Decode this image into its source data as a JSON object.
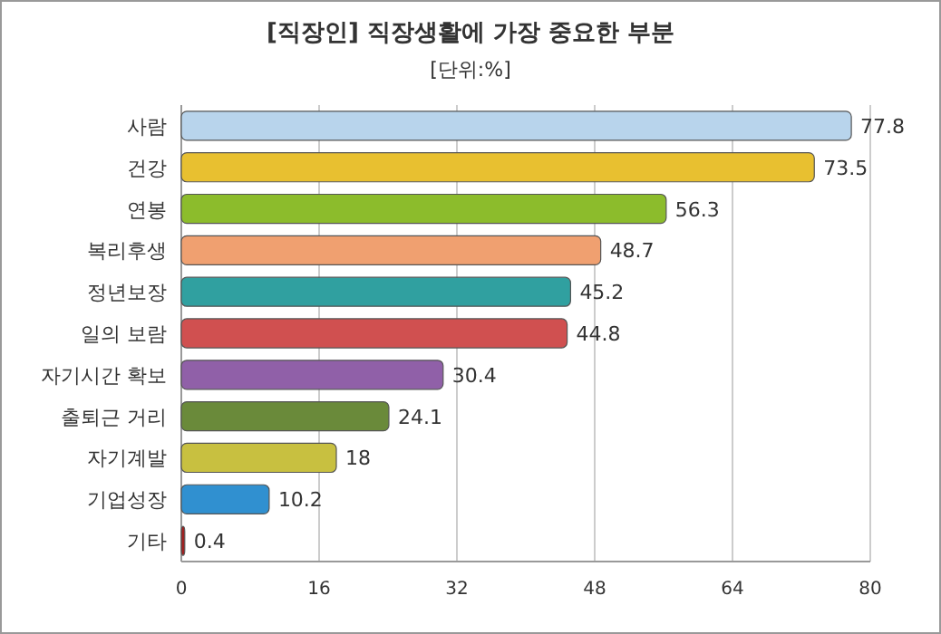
{
  "chart_data": {
    "type": "bar",
    "orientation": "horizontal",
    "title": "[직장인] 직장생활에 가장 중요한 부분",
    "subtitle": "[단위:%]",
    "categories": [
      "사람",
      "건강",
      "연봉",
      "복리후생",
      "정년보장",
      "일의 보람",
      "자기시간 확보",
      "출퇴근 거리",
      "자기계발",
      "기업성장",
      "기타"
    ],
    "values": [
      77.8,
      73.5,
      56.3,
      48.7,
      45.2,
      44.8,
      30.4,
      24.1,
      18,
      10.2,
      0.4
    ],
    "colors": [
      "#b8d4ec",
      "#e8c030",
      "#8cbc2c",
      "#f0a070",
      "#30a0a0",
      "#d05050",
      "#9060a8",
      "#6a8a3a",
      "#c8c040",
      "#3090d0",
      "#a02020"
    ],
    "xlim": [
      0,
      80
    ],
    "xticks": [
      0,
      16,
      32,
      48,
      64,
      80
    ],
    "grid": "x",
    "data_labels": true
  }
}
